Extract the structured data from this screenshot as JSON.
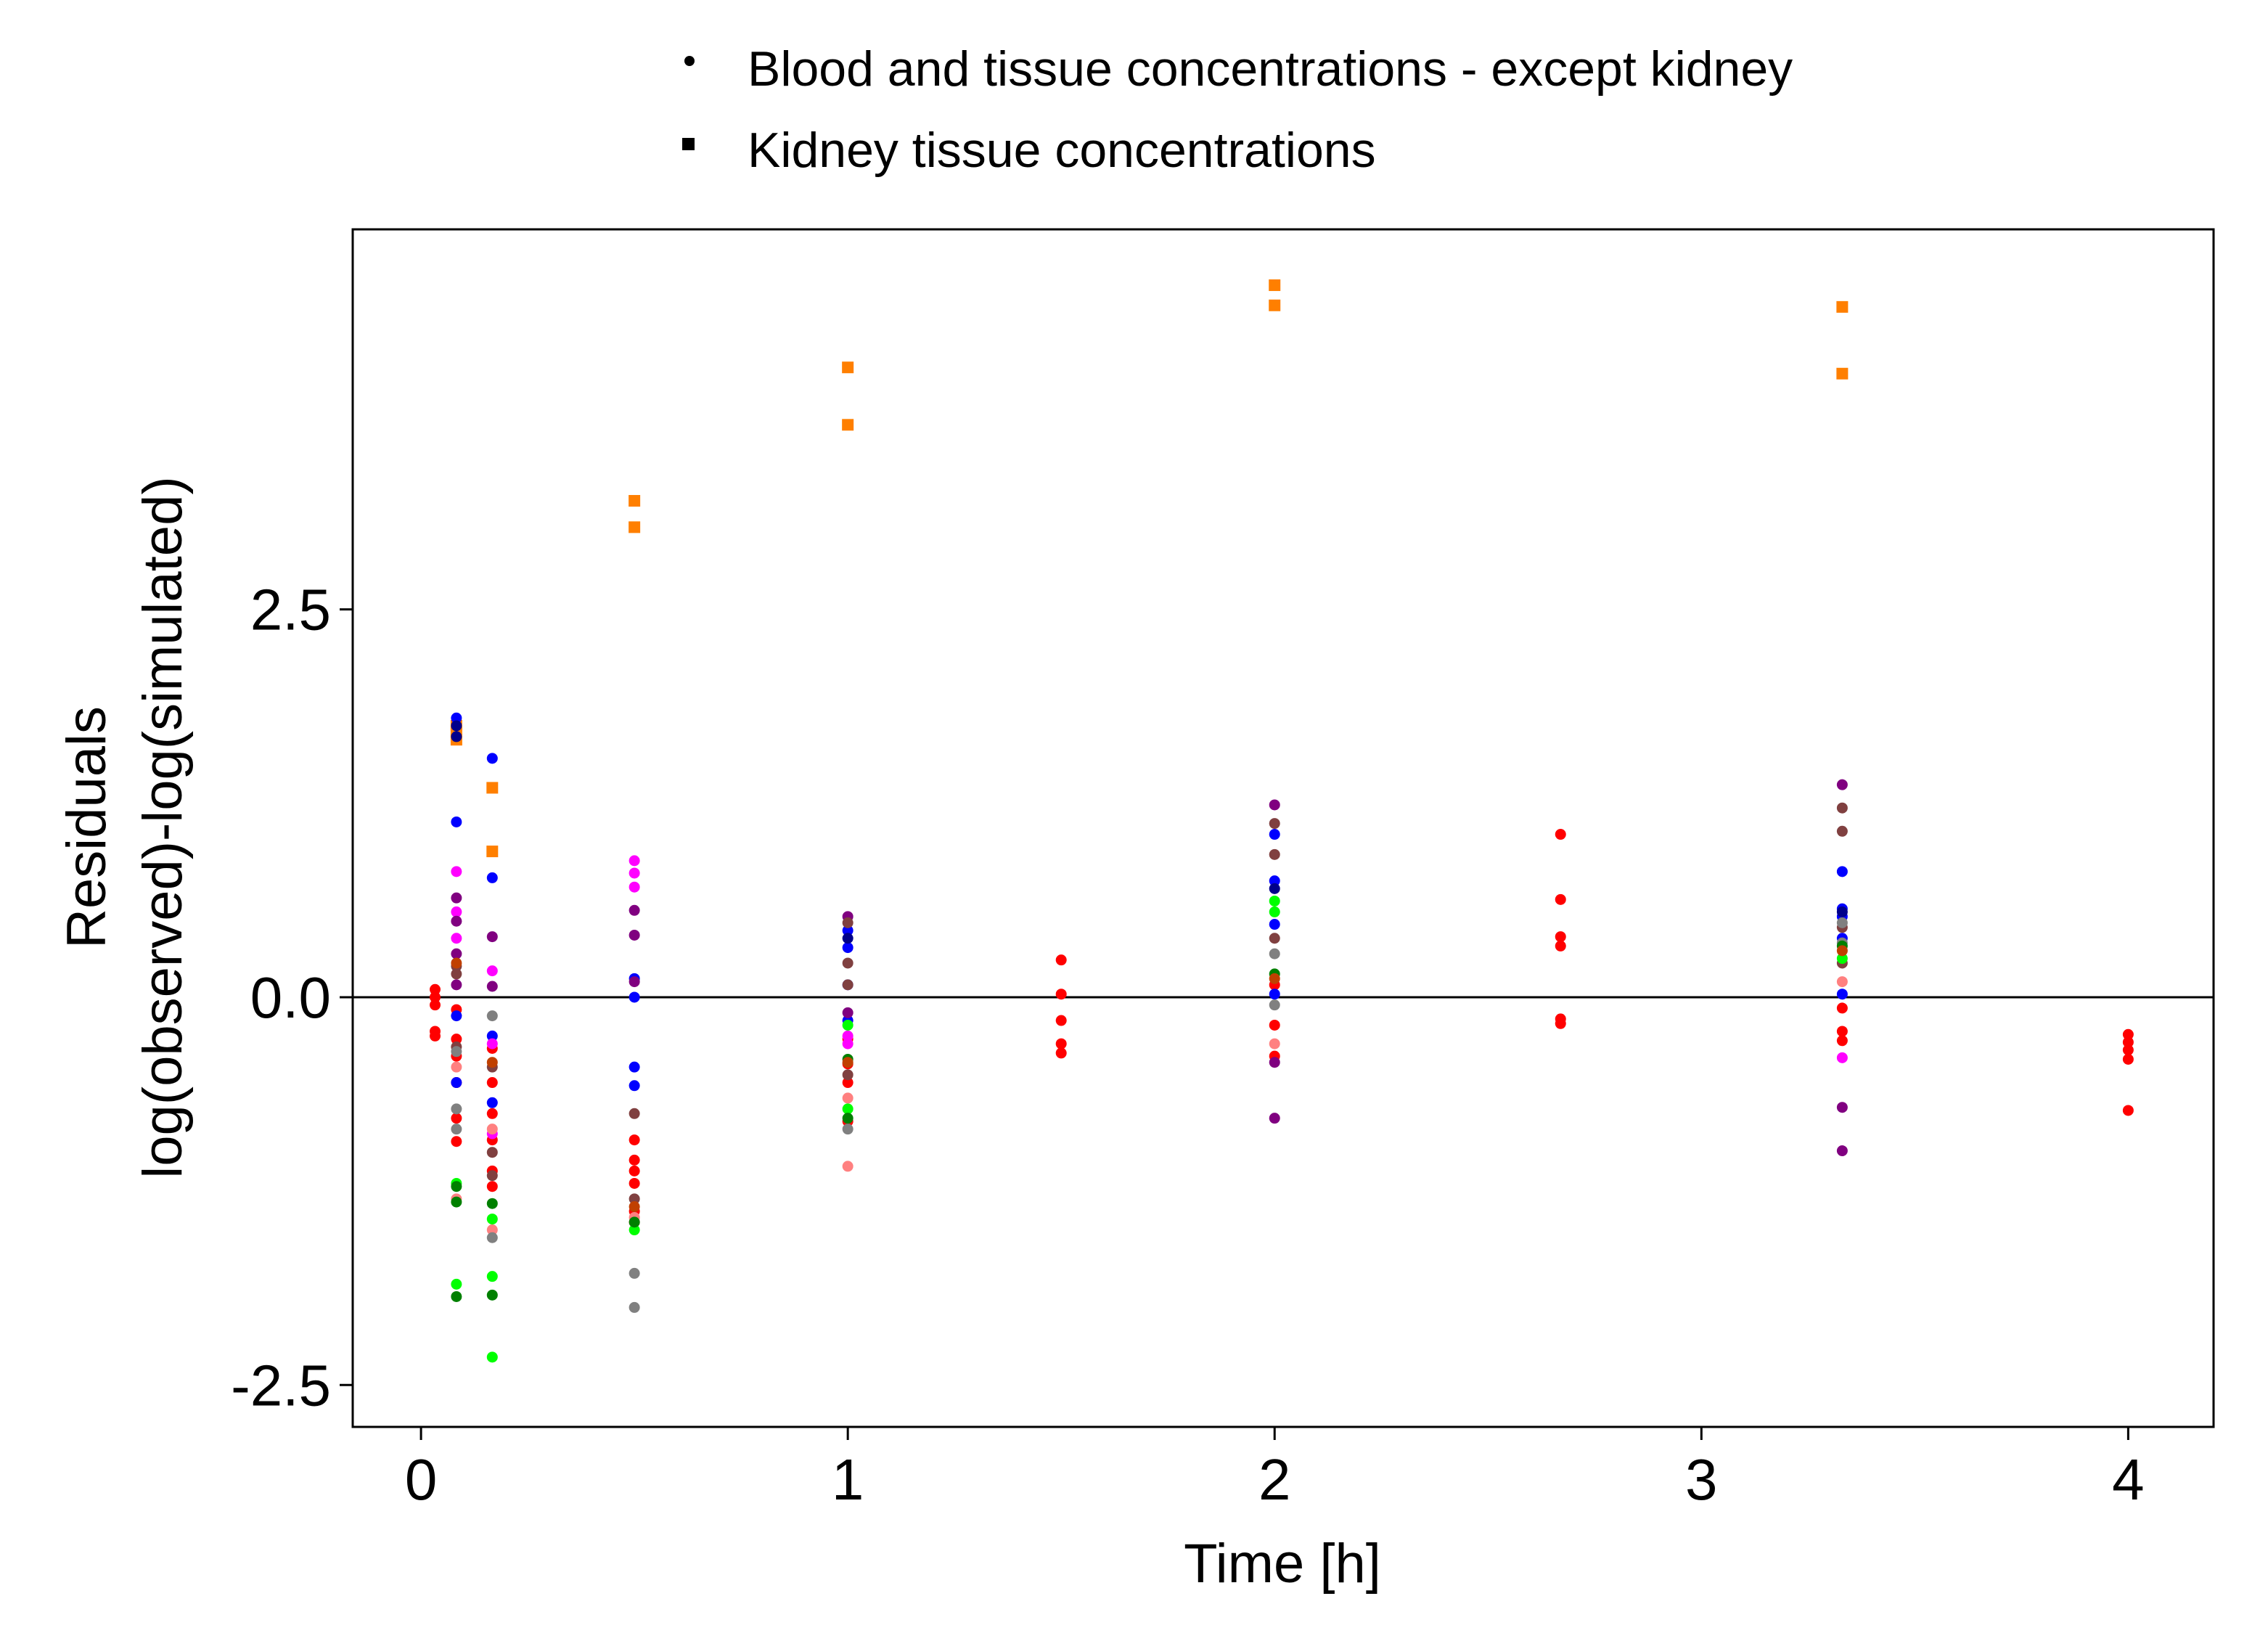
{
  "chart_data": {
    "type": "scatter",
    "xlabel": "Time [h]",
    "ylabel_lines": [
      "Residuals",
      "log(observed)-log(simulated)"
    ],
    "xlim": [
      -0.16,
      4.2
    ],
    "ylim": [
      -2.77,
      4.95
    ],
    "x_ticks": [
      0,
      1,
      2,
      3,
      4
    ],
    "y_ticks": [
      -2.5,
      0.0,
      2.5
    ],
    "y_tick_labels": [
      "-2.5",
      "0.0",
      "2.5"
    ],
    "reference_line": 0,
    "grid": false,
    "legend": {
      "placement": "top",
      "entries": [
        {
          "label": "Blood and tissue concentrations - except kidney",
          "marker": "circle"
        },
        {
          "label": "Kidney tissue concentrations",
          "marker": "square"
        }
      ]
    },
    "series": [
      {
        "marker": "square",
        "color": "#ff7f00",
        "points": [
          [
            0.083,
            1.75
          ],
          [
            0.083,
            1.71
          ],
          [
            0.083,
            1.66
          ],
          [
            0.167,
            1.35
          ],
          [
            0.167,
            0.94
          ],
          [
            0.5,
            3.2
          ],
          [
            0.5,
            3.03
          ],
          [
            1,
            4.06
          ],
          [
            1,
            3.69
          ],
          [
            2,
            4.59
          ],
          [
            2,
            4.46
          ],
          [
            3.33,
            4.45
          ],
          [
            3.33,
            4.02
          ]
        ]
      },
      {
        "marker": "circle",
        "color": "#ff0000",
        "points": [
          [
            0.033,
            0.05
          ],
          [
            0.033,
            -0.05
          ],
          [
            0.033,
            -0.22
          ],
          [
            0.033,
            -0.25
          ],
          [
            0.033,
            0.0
          ],
          [
            0.083,
            -0.08
          ],
          [
            0.083,
            -0.27
          ],
          [
            0.083,
            -0.38
          ],
          [
            0.083,
            -0.55
          ],
          [
            0.083,
            -0.78
          ],
          [
            0.083,
            -0.93
          ],
          [
            0.167,
            -0.33
          ],
          [
            0.167,
            -0.55
          ],
          [
            0.167,
            -0.75
          ],
          [
            0.167,
            -0.92
          ],
          [
            0.167,
            -1.12
          ],
          [
            0.167,
            -1.22
          ],
          [
            0.5,
            -0.92
          ],
          [
            0.5,
            -1.05
          ],
          [
            0.5,
            -1.12
          ],
          [
            0.5,
            -1.2
          ],
          [
            0.5,
            -1.38
          ],
          [
            0.5,
            -1.45
          ],
          [
            1,
            -0.43
          ],
          [
            1,
            -0.55
          ],
          [
            1,
            -0.8
          ],
          [
            1,
            -0.27
          ],
          [
            1.5,
            0.24
          ],
          [
            1.5,
            0.02
          ],
          [
            1.5,
            -0.15
          ],
          [
            1.5,
            -0.3
          ],
          [
            1.5,
            -0.36
          ],
          [
            2,
            0.08
          ],
          [
            2,
            -0.18
          ],
          [
            2,
            -0.38
          ],
          [
            2.67,
            1.05
          ],
          [
            2.67,
            0.63
          ],
          [
            2.67,
            0.39
          ],
          [
            2.67,
            0.33
          ],
          [
            2.67,
            -0.14
          ],
          [
            2.67,
            -0.17
          ],
          [
            3.33,
            -0.07
          ],
          [
            3.33,
            -0.22
          ],
          [
            3.33,
            -0.28
          ],
          [
            4,
            -0.24
          ],
          [
            4,
            -0.29
          ],
          [
            4,
            -0.34
          ],
          [
            4,
            -0.4
          ],
          [
            4,
            -0.73
          ]
        ]
      },
      {
        "marker": "circle",
        "color": "#0000ff",
        "points": [
          [
            0.083,
            1.8
          ],
          [
            0.083,
            1.13
          ],
          [
            0.083,
            -0.12
          ],
          [
            0.083,
            -0.55
          ],
          [
            0.167,
            1.54
          ],
          [
            0.167,
            0.77
          ],
          [
            0.167,
            -0.25
          ],
          [
            0.167,
            -0.68
          ],
          [
            0.5,
            0.12
          ],
          [
            0.5,
            0.0
          ],
          [
            0.5,
            -0.45
          ],
          [
            0.5,
            -0.57
          ],
          [
            1,
            0.43
          ],
          [
            1,
            0.32
          ],
          [
            1,
            0.08
          ],
          [
            1,
            -0.15
          ],
          [
            2,
            1.05
          ],
          [
            2,
            0.75
          ],
          [
            2,
            0.47
          ],
          [
            2,
            0.02
          ],
          [
            3.33,
            0.81
          ],
          [
            3.33,
            0.57
          ],
          [
            3.33,
            0.52
          ],
          [
            3.33,
            0.38
          ],
          [
            3.33,
            0.02
          ]
        ]
      },
      {
        "marker": "circle",
        "color": "#ff00ff",
        "points": [
          [
            0.083,
            0.81
          ],
          [
            0.083,
            0.55
          ],
          [
            0.083,
            0.38
          ],
          [
            0.167,
            0.17
          ],
          [
            0.167,
            -0.3
          ],
          [
            0.167,
            -0.88
          ],
          [
            0.5,
            0.88
          ],
          [
            0.5,
            0.8
          ],
          [
            0.5,
            0.71
          ],
          [
            1,
            -0.25
          ],
          [
            1,
            -0.3
          ],
          [
            3.33,
            -0.39
          ]
        ]
      },
      {
        "marker": "circle",
        "color": "#800080",
        "points": [
          [
            0.083,
            0.64
          ],
          [
            0.083,
            0.49
          ],
          [
            0.083,
            0.28
          ],
          [
            0.083,
            0.08
          ],
          [
            0.167,
            0.39
          ],
          [
            0.167,
            0.07
          ],
          [
            0.5,
            0.56
          ],
          [
            0.5,
            0.4
          ],
          [
            0.5,
            0.1
          ],
          [
            1,
            0.52
          ],
          [
            1,
            -0.1
          ],
          [
            2,
            1.24
          ],
          [
            2,
            -0.42
          ],
          [
            2,
            -0.78
          ],
          [
            3.33,
            1.37
          ],
          [
            3.33,
            -0.71
          ],
          [
            3.33,
            -0.99
          ]
        ]
      },
      {
        "marker": "circle",
        "color": "#804040",
        "points": [
          [
            0.083,
            0.2
          ],
          [
            0.083,
            0.15
          ],
          [
            0.083,
            -0.32
          ],
          [
            0.167,
            -0.45
          ],
          [
            0.167,
            -1.0
          ],
          [
            0.167,
            -1.15
          ],
          [
            0.5,
            -0.75
          ],
          [
            0.5,
            -1.3
          ],
          [
            1,
            0.48
          ],
          [
            1,
            0.22
          ],
          [
            1,
            0.08
          ],
          [
            1,
            -0.5
          ],
          [
            2,
            1.12
          ],
          [
            2,
            0.92
          ],
          [
            2,
            0.38
          ],
          [
            3.33,
            1.22
          ],
          [
            3.33,
            1.07
          ],
          [
            3.33,
            0.45
          ],
          [
            3.33,
            0.22
          ]
        ]
      },
      {
        "marker": "circle",
        "color": "#ff8080",
        "points": [
          [
            0.083,
            -0.45
          ],
          [
            0.083,
            -1.3
          ],
          [
            0.167,
            -0.85
          ],
          [
            0.167,
            -1.5
          ],
          [
            0.5,
            -1.42
          ],
          [
            1,
            -0.65
          ],
          [
            1,
            -1.09
          ],
          [
            2,
            -0.3
          ],
          [
            3.33,
            0.1
          ]
        ]
      },
      {
        "marker": "circle",
        "color": "#808080",
        "points": [
          [
            0.083,
            -0.35
          ],
          [
            0.083,
            -0.72
          ],
          [
            0.083,
            -0.85
          ],
          [
            0.167,
            -1.55
          ],
          [
            0.167,
            -0.12
          ],
          [
            0.5,
            -1.78
          ],
          [
            0.5,
            -2.0
          ],
          [
            1,
            -0.85
          ],
          [
            2,
            0.28
          ],
          [
            2,
            -0.05
          ],
          [
            3.33,
            0.48
          ],
          [
            3.33,
            0.35
          ]
        ]
      },
      {
        "marker": "circle",
        "color": "#00ff00",
        "points": [
          [
            0.083,
            -1.2
          ],
          [
            0.083,
            -1.85
          ],
          [
            0.167,
            -1.43
          ],
          [
            0.167,
            -1.8
          ],
          [
            0.167,
            -2.32
          ],
          [
            0.5,
            -1.5
          ],
          [
            1,
            -0.18
          ],
          [
            1,
            -0.72
          ],
          [
            2,
            0.62
          ],
          [
            2,
            0.55
          ],
          [
            3.33,
            0.25
          ]
        ]
      },
      {
        "marker": "circle",
        "color": "#008000",
        "points": [
          [
            0.083,
            -1.22
          ],
          [
            0.083,
            -1.32
          ],
          [
            0.083,
            -1.93
          ],
          [
            0.167,
            -1.33
          ],
          [
            0.167,
            -1.92
          ],
          [
            0.5,
            -1.45
          ],
          [
            1,
            -0.4
          ],
          [
            1,
            -0.78
          ],
          [
            2,
            0.15
          ],
          [
            3.33,
            0.33
          ]
        ]
      },
      {
        "marker": "circle",
        "color": "#00008b",
        "points": [
          [
            0.083,
            1.75
          ],
          [
            0.083,
            1.68
          ],
          [
            1,
            0.38
          ],
          [
            2,
            0.7
          ],
          [
            3.33,
            0.55
          ]
        ]
      },
      {
        "marker": "circle",
        "color": "#c04000",
        "points": [
          [
            0.083,
            0.22
          ],
          [
            0.167,
            -0.42
          ],
          [
            0.5,
            -1.35
          ],
          [
            1,
            -0.42
          ],
          [
            2,
            0.12
          ],
          [
            3.33,
            0.3
          ]
        ]
      }
    ]
  }
}
